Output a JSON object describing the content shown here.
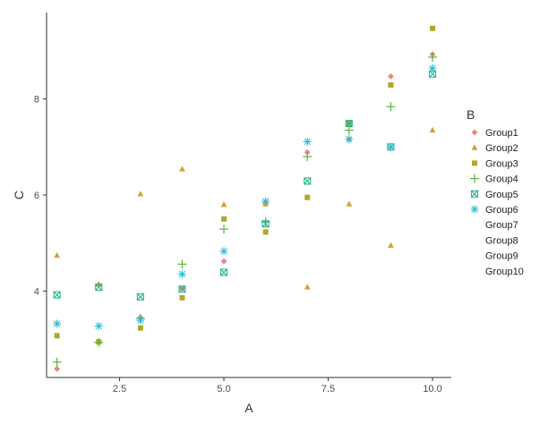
{
  "chart_data": {
    "type": "scatter",
    "title": "",
    "xlabel": "A",
    "ylabel": "C",
    "xlim": [
      0.75,
      10.45
    ],
    "ylim": [
      2.2,
      9.8
    ],
    "x_ticks": [
      2.5,
      5.0,
      7.5,
      10.0
    ],
    "x_tick_labels": [
      "2.5",
      "5.0",
      "7.5",
      "10.0"
    ],
    "y_ticks": [
      4,
      6,
      8
    ],
    "y_tick_labels": [
      "4",
      "6",
      "8"
    ],
    "grid": false,
    "legend": {
      "title": "B",
      "placement": "right"
    },
    "series": [
      {
        "name": "Group1",
        "shape": "diamond",
        "color": "#E7877F",
        "points": [
          [
            1,
            2.38
          ],
          [
            2,
            4.13
          ],
          [
            3,
            3.45
          ],
          [
            4,
            4.05
          ],
          [
            5,
            4.62
          ],
          [
            6,
            5.84
          ],
          [
            7,
            6.89
          ],
          [
            8,
            7.16
          ],
          [
            9,
            8.47
          ],
          [
            10,
            8.93
          ]
        ]
      },
      {
        "name": "Group2",
        "shape": "triangle",
        "color": "#D5A13A",
        "points": [
          [
            1,
            4.74
          ],
          [
            2,
            4.14
          ],
          [
            3,
            6.02
          ],
          [
            4,
            6.54
          ],
          [
            5,
            5.8
          ],
          [
            6,
            5.81
          ],
          [
            7,
            4.08
          ],
          [
            8,
            5.81
          ],
          [
            9,
            4.95
          ],
          [
            10,
            7.35
          ]
        ]
      },
      {
        "name": "Group3",
        "shape": "square",
        "color": "#B2A72C",
        "points": [
          [
            1,
            3.07
          ],
          [
            2,
            2.94
          ],
          [
            3,
            3.23
          ],
          [
            4,
            3.86
          ],
          [
            5,
            5.5
          ],
          [
            6,
            5.23
          ],
          [
            7,
            5.95
          ],
          [
            8,
            7.49
          ],
          [
            9,
            8.29
          ],
          [
            10,
            9.47
          ]
        ]
      },
      {
        "name": "Group4",
        "shape": "plus",
        "color": "#5AB43B",
        "points": [
          [
            1,
            2.52
          ],
          [
            2,
            2.93
          ],
          [
            3,
            3.43
          ],
          [
            4,
            4.56
          ],
          [
            5,
            5.29
          ],
          [
            6,
            5.44
          ],
          [
            7,
            6.8
          ],
          [
            8,
            7.35
          ],
          [
            9,
            7.84
          ],
          [
            10,
            8.87
          ]
        ]
      },
      {
        "name": "Group5",
        "shape": "square-x",
        "color": "#2CB48E",
        "points": [
          [
            1,
            3.92
          ],
          [
            2,
            4.08
          ],
          [
            3,
            3.88
          ],
          [
            4,
            4.04
          ],
          [
            5,
            4.39
          ],
          [
            6,
            5.4
          ],
          [
            7,
            6.29
          ],
          [
            8,
            7.49
          ],
          [
            9,
            7.0
          ],
          [
            10,
            8.52
          ]
        ]
      },
      {
        "name": "Group6",
        "shape": "asterisk",
        "color": "#2DBCD3",
        "points": [
          [
            1,
            3.32
          ],
          [
            2,
            3.27
          ],
          [
            3,
            3.39
          ],
          [
            4,
            4.35
          ],
          [
            5,
            4.83
          ],
          [
            6,
            5.87
          ],
          [
            7,
            7.11
          ],
          [
            8,
            7.16
          ],
          [
            9,
            7.0
          ],
          [
            10,
            8.64
          ]
        ]
      },
      {
        "name": "Group7",
        "shape": "none",
        "color": "#3E9FE0",
        "points": []
      },
      {
        "name": "Group8",
        "shape": "none",
        "color": "#8C8CF0",
        "points": []
      },
      {
        "name": "Group9",
        "shape": "none",
        "color": "#D178E8",
        "points": []
      },
      {
        "name": "Group10",
        "shape": "none",
        "color": "#E970B6",
        "points": []
      }
    ]
  }
}
